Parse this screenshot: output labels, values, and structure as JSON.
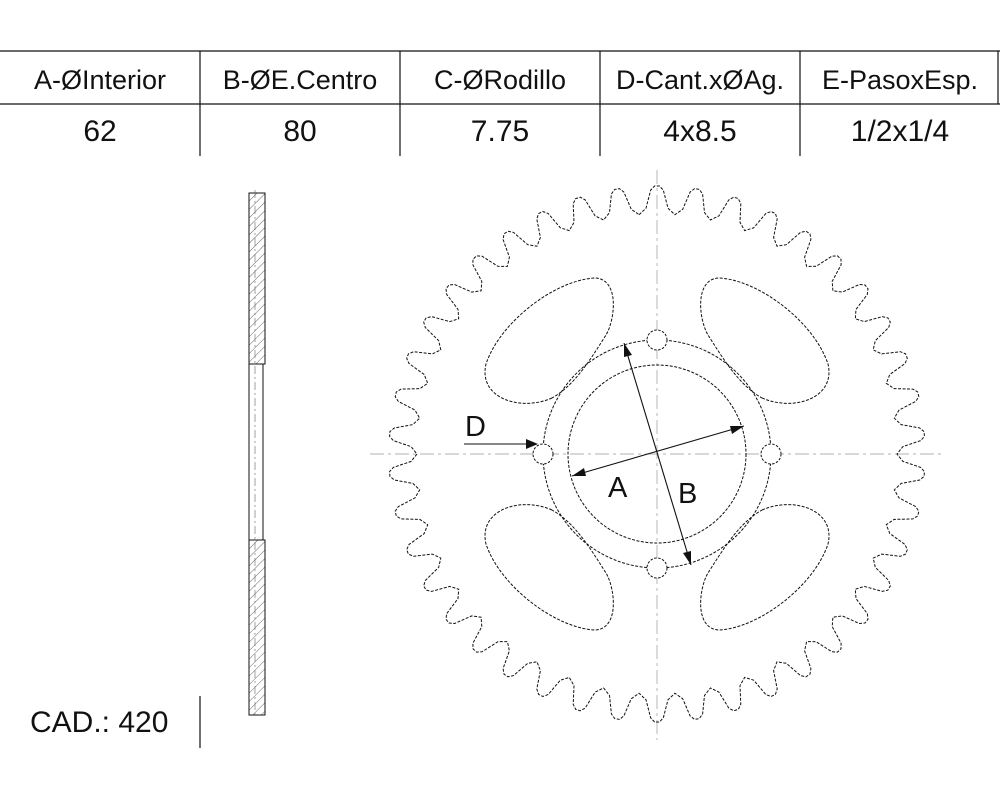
{
  "table": {
    "headers": [
      "A-ØInterior",
      "B-ØE.Centro",
      "C-ØRodillo",
      "D-Cant.xØAg.",
      "E-PasoxEsp."
    ],
    "values": [
      "62",
      "80",
      "7.75",
      "4x8.5",
      "1/2x1/4"
    ]
  },
  "drawing": {
    "labels": {
      "a": "A",
      "b": "B",
      "d": "D"
    },
    "teeth": 42,
    "bolt_holes": 4
  },
  "footer": {
    "cad": "CAD.: 420"
  }
}
